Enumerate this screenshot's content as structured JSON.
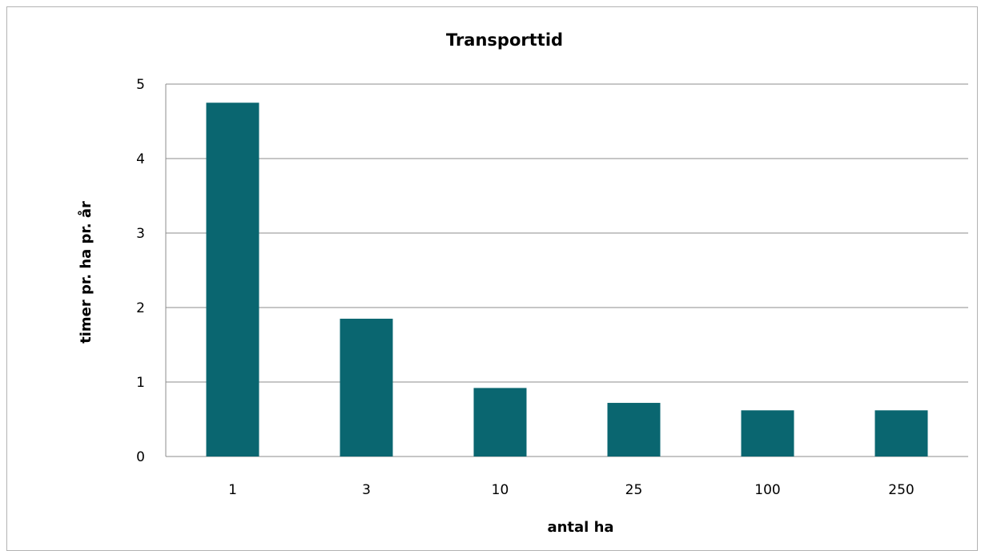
{
  "chart_data": {
    "type": "bar",
    "title": "Transporttid",
    "xlabel": "antal ha",
    "ylabel": "timer  pr. ha pr. år",
    "categories": [
      "1",
      "3",
      "10",
      "25",
      "100",
      "250"
    ],
    "values": [
      4.75,
      1.85,
      0.92,
      0.72,
      0.62,
      0.62
    ],
    "ylim": [
      0,
      5
    ],
    "yticks": [
      0,
      1,
      2,
      3,
      4,
      5
    ],
    "grid": true,
    "legend": "none",
    "bar_color": "#0a6670",
    "grid_color": "#8c8c8c"
  }
}
